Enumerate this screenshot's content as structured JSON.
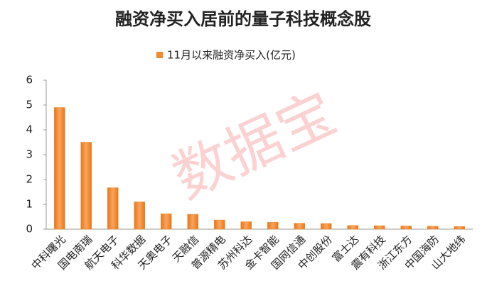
{
  "chart_data": {
    "type": "bar",
    "title": "融资净买入居前的量子科技概念股",
    "watermark": "数据宝",
    "series": [
      {
        "name": "11月以来融资净买入(亿元)",
        "color": "#f08a2c",
        "values": [
          4.9,
          3.5,
          1.67,
          1.1,
          0.62,
          0.6,
          0.37,
          0.3,
          0.28,
          0.24,
          0.23,
          0.15,
          0.14,
          0.13,
          0.12,
          0.11
        ]
      }
    ],
    "categories": [
      "中科曙光",
      "国电南瑞",
      "航天电子",
      "科华数据",
      "天奥电子",
      "天融信",
      "普源精电",
      "苏州科达",
      "金卡智能",
      "国网信通",
      "中创股份",
      "富士达",
      "震有科技",
      "浙江东方",
      "中国海防",
      "山大地纬"
    ],
    "ylim": [
      0,
      6
    ],
    "yticks": [
      0,
      1,
      2,
      3,
      4,
      5,
      6
    ],
    "grid": false,
    "legend": "top"
  }
}
